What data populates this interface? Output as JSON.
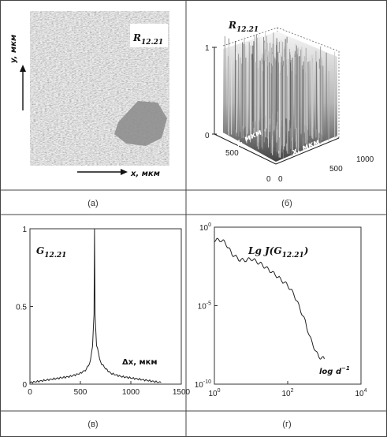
{
  "panels": {
    "a": {
      "caption": "(а)",
      "label_main": "R",
      "label_sub": "12.21",
      "x_axis": "x, мкм",
      "y_axis": "y, мкм"
    },
    "b": {
      "caption": "(б)",
      "label_main": "R",
      "label_sub": "12.21",
      "y_axis_3d": "y, мкм",
      "x_axis_3d": "x, мкм",
      "ticks_z": [
        "1",
        "0"
      ],
      "ticks_y": [
        "500",
        "0"
      ],
      "ticks_x": [
        "0",
        "500",
        "1000"
      ]
    },
    "c": {
      "caption": "(в)",
      "label_main": "G",
      "label_sub": "12.21",
      "x_axis": "Δx, мкм"
    },
    "d": {
      "caption": "(г)",
      "label_main": "Lg J(G",
      "label_sub": "12.21",
      "label_end": ")",
      "x_axis": "log d",
      "x_axis_sup": "−1"
    }
  },
  "chart_data": [
    {
      "panel": "в",
      "type": "line",
      "title": "",
      "xlabel": "Δx, мкм",
      "ylabel": "",
      "xlim": [
        0,
        1500
      ],
      "ylim": [
        0,
        1
      ],
      "xticks": [
        "0",
        "500",
        "1000",
        "1500"
      ],
      "yticks": [
        "0",
        "0.5",
        "1"
      ],
      "series": [
        {
          "x": [
            0,
            100,
            200,
            300,
            400,
            450,
            500,
            550,
            580,
            600,
            610,
            620,
            630,
            635,
            640,
            645,
            650,
            660,
            680,
            700,
            750,
            800,
            900,
            1000,
            1100,
            1200,
            1300
          ],
          "y": [
            0.01,
            0.02,
            0.03,
            0.04,
            0.05,
            0.06,
            0.07,
            0.09,
            0.12,
            0.15,
            0.2,
            0.25,
            0.38,
            0.45,
            1.0,
            0.45,
            0.38,
            0.25,
            0.2,
            0.14,
            0.1,
            0.07,
            0.05,
            0.04,
            0.03,
            0.02,
            0.01
          ]
        }
      ]
    },
    {
      "panel": "г",
      "type": "line",
      "title": "",
      "xlabel": "log d^-1",
      "ylabel": "",
      "xscale": "log",
      "yscale": "log",
      "xlim": [
        1,
        10000
      ],
      "ylim": [
        1e-10,
        1
      ],
      "xticks": [
        "10^0",
        "10^2",
        "10^4"
      ],
      "yticks": [
        "10^0",
        "10^-5",
        "10^-10"
      ],
      "series": [
        {
          "x": [
            1,
            1.5,
            2,
            3,
            5,
            8,
            10,
            15,
            20,
            30,
            50,
            80,
            100,
            150,
            200,
            300,
            400,
            500,
            600,
            700,
            800,
            1000
          ],
          "y": [
            0.15,
            0.15,
            0.1,
            0.02,
            0.008,
            0.008,
            0.01,
            0.006,
            0.004,
            0.002,
            0.0008,
            0.0003,
            0.0002,
            5e-05,
            1e-05,
            1e-06,
            1e-07,
            3e-08,
            1e-08,
            6e-09,
            5e-09,
            4e-09
          ]
        }
      ]
    }
  ]
}
